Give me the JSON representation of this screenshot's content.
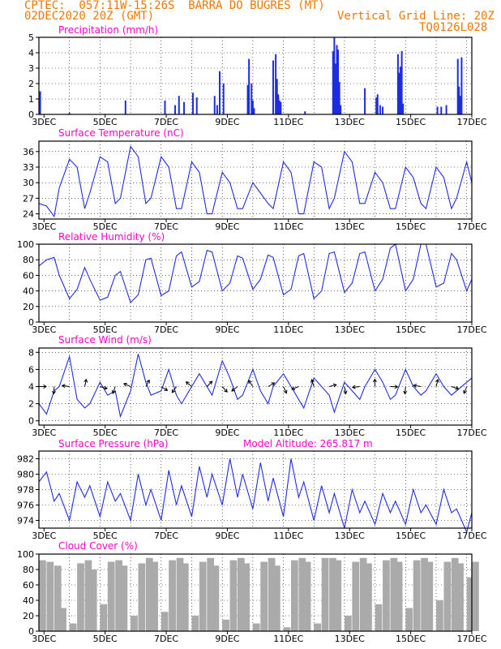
{
  "header": {
    "line1": "CPTEC:  057:11W-15:26S  BARRA DO BUGRES (MT)",
    "line2": "02DEC2020 20Z (GMT)",
    "grid_note": "Vertical Grid Line: 20Z",
    "code": "TQ0126L028",
    "model_altitude": "Model Altitude: 265.817 m"
  },
  "colors": {
    "header": "#f07800",
    "title": "#ff00cc",
    "line": "#1f2de0",
    "bar": "#1f2de0",
    "cloud": "#aaaaaa",
    "arrow": "#000000",
    "grid": "#000000"
  },
  "chart_data": [
    {
      "type": "bar",
      "title": "Precipitation (mm/h)",
      "x_tick_labels": [
        "3DEC",
        "5DEC",
        "7DEC",
        "9DEC",
        "11DEC",
        "13DEC",
        "15DEC",
        "17DEC"
      ],
      "x_start": "02DEC2020 20Z",
      "x": [
        "02DEC 21Z",
        "03DEC 20Z",
        "05DEC 16Z",
        "06DEC 23Z",
        "07DEC 07Z",
        "07DEC 10Z",
        "07DEC 14Z",
        "07DEC 21Z",
        "08DEC 00Z",
        "08DEC 14Z",
        "08DEC 16Z",
        "08DEC 18Z",
        "08DEC 21Z",
        "09DEC 16Z",
        "09DEC 17Z",
        "09DEC 19Z",
        "09DEC 20Z",
        "09DEC 21Z",
        "10DEC 12Z",
        "10DEC 14Z",
        "10DEC 15Z",
        "10DEC 16Z",
        "10DEC 17Z",
        "10DEC 18Z",
        "11DEC 13Z",
        "12DEC 11Z",
        "12DEC 12Z",
        "12DEC 13Z",
        "12DEC 14Z",
        "12DEC 15Z",
        "12DEC 16Z",
        "12DEC 17Z",
        "13DEC 12Z",
        "13DEC 21Z",
        "13DEC 22Z",
        "14DEC 00Z",
        "14DEC 02Z",
        "14DEC 14Z",
        "14DEC 15Z",
        "14DEC 16Z",
        "14DEC 17Z",
        "14DEC 18Z",
        "15DEC 21Z",
        "16DEC 00Z",
        "16DEC 04Z",
        "16DEC 13Z",
        "16DEC 14Z",
        "16DEC 15Z",
        "16DEC 16Z"
      ],
      "values": [
        1.5,
        0.1,
        0.9,
        0.9,
        0.6,
        1.2,
        0.8,
        1.4,
        1.1,
        1.2,
        0.6,
        2.8,
        2.0,
        1.9,
        3.6,
        2.0,
        0.9,
        0.4,
        3.5,
        3.9,
        2.3,
        1.3,
        0.9,
        0.8,
        0.2,
        4.1,
        5.0,
        3.3,
        4.5,
        4.2,
        2.1,
        0.6,
        1.7,
        1.1,
        1.3,
        0.6,
        0.5,
        3.9,
        2.7,
        3.1,
        4.1,
        0.7,
        0.5,
        0.5,
        0.6,
        3.6,
        1.8,
        1.2,
        3.7
      ],
      "ylim": [
        0,
        5
      ],
      "y_ticks": [
        0,
        1,
        2,
        3,
        4,
        5
      ]
    },
    {
      "type": "line",
      "title": "Surface Temperature (nC)",
      "x_tick_labels": [
        "3DEC",
        "5DEC",
        "7DEC",
        "9DEC",
        "11DEC",
        "13DEC",
        "15DEC",
        "17DEC"
      ],
      "x": [
        "02DEC 20Z",
        "03DEC 02Z",
        "03DEC 08Z",
        "03DEC 12Z",
        "03DEC 20Z",
        "04DEC 02Z",
        "04DEC 08Z",
        "04DEC 12Z",
        "04DEC 20Z",
        "05DEC 02Z",
        "05DEC 08Z",
        "05DEC 12Z",
        "05DEC 20Z",
        "06DEC 02Z",
        "06DEC 08Z",
        "06DEC 12Z",
        "06DEC 20Z",
        "07DEC 02Z",
        "07DEC 08Z",
        "07DEC 12Z",
        "07DEC 20Z",
        "08DEC 02Z",
        "08DEC 08Z",
        "08DEC 12Z",
        "08DEC 20Z",
        "09DEC 02Z",
        "09DEC 08Z",
        "09DEC 12Z",
        "09DEC 20Z",
        "10DEC 02Z",
        "10DEC 08Z",
        "10DEC 12Z",
        "10DEC 20Z",
        "11DEC 02Z",
        "11DEC 08Z",
        "11DEC 12Z",
        "11DEC 20Z",
        "12DEC 02Z",
        "12DEC 08Z",
        "12DEC 12Z",
        "12DEC 20Z",
        "13DEC 02Z",
        "13DEC 08Z",
        "13DEC 12Z",
        "13DEC 20Z",
        "14DEC 02Z",
        "14DEC 08Z",
        "14DEC 12Z",
        "14DEC 20Z",
        "15DEC 02Z",
        "15DEC 08Z",
        "15DEC 12Z",
        "15DEC 20Z",
        "16DEC 02Z",
        "16DEC 08Z",
        "16DEC 12Z",
        "16DEC 20Z",
        "17DEC 00Z"
      ],
      "values": [
        26,
        25.5,
        23.5,
        29,
        34.5,
        33,
        25,
        28,
        35,
        34,
        26,
        27,
        37,
        35,
        26,
        27,
        35,
        33,
        25,
        25,
        34,
        32,
        24,
        24,
        32,
        30,
        25,
        25,
        30,
        28,
        26,
        25,
        34,
        32,
        24,
        24,
        34,
        33,
        25,
        27,
        36,
        34,
        26,
        26,
        32,
        30,
        25,
        25,
        33,
        31,
        26,
        25,
        33,
        31,
        25,
        27,
        34,
        30
      ],
      "ylim": [
        23,
        38
      ],
      "y_ticks": [
        24,
        27,
        30,
        33,
        36
      ]
    },
    {
      "type": "line",
      "title": "Relative Humidity (%)",
      "x_tick_labels": [
        "3DEC",
        "5DEC",
        "7DEC",
        "9DEC",
        "11DEC",
        "13DEC",
        "15DEC",
        "17DEC"
      ],
      "x": [
        "02DEC 20Z",
        "03DEC 02Z",
        "03DEC 08Z",
        "03DEC 12Z",
        "03DEC 20Z",
        "04DEC 02Z",
        "04DEC 08Z",
        "04DEC 12Z",
        "04DEC 20Z",
        "05DEC 02Z",
        "05DEC 08Z",
        "05DEC 12Z",
        "05DEC 20Z",
        "06DEC 02Z",
        "06DEC 08Z",
        "06DEC 12Z",
        "06DEC 20Z",
        "07DEC 02Z",
        "07DEC 08Z",
        "07DEC 12Z",
        "07DEC 20Z",
        "08DEC 02Z",
        "08DEC 08Z",
        "08DEC 12Z",
        "08DEC 20Z",
        "09DEC 02Z",
        "09DEC 08Z",
        "09DEC 12Z",
        "09DEC 20Z",
        "10DEC 02Z",
        "10DEC 08Z",
        "10DEC 12Z",
        "10DEC 20Z",
        "11DEC 02Z",
        "11DEC 08Z",
        "11DEC 12Z",
        "11DEC 20Z",
        "12DEC 02Z",
        "12DEC 08Z",
        "12DEC 12Z",
        "12DEC 20Z",
        "13DEC 02Z",
        "13DEC 08Z",
        "13DEC 12Z",
        "13DEC 20Z",
        "14DEC 02Z",
        "14DEC 08Z",
        "14DEC 12Z",
        "14DEC 20Z",
        "15DEC 02Z",
        "15DEC 08Z",
        "15DEC 12Z",
        "15DEC 20Z",
        "16DEC 02Z",
        "16DEC 08Z",
        "16DEC 12Z",
        "16DEC 20Z",
        "17DEC 00Z"
      ],
      "values": [
        72,
        80,
        83,
        60,
        30,
        42,
        70,
        55,
        28,
        32,
        60,
        65,
        25,
        35,
        80,
        82,
        34,
        40,
        85,
        90,
        45,
        52,
        92,
        90,
        40,
        50,
        85,
        82,
        42,
        55,
        86,
        83,
        35,
        42,
        85,
        88,
        30,
        40,
        88,
        90,
        38,
        50,
        88,
        90,
        40,
        55,
        95,
        100,
        40,
        55,
        100,
        100,
        45,
        50,
        88,
        80,
        40,
        55
      ],
      "ylim": [
        0,
        100
      ],
      "y_ticks": [
        0,
        20,
        40,
        60,
        80,
        100
      ]
    },
    {
      "type": "line",
      "title": "Surface Wind (m/s)",
      "x_tick_labels": [
        "3DEC",
        "5DEC",
        "7DEC",
        "9DEC",
        "11DEC",
        "13DEC",
        "15DEC",
        "17DEC"
      ],
      "x": [
        "02DEC 20Z",
        "03DEC 02Z",
        "03DEC 08Z",
        "03DEC 12Z",
        "03DEC 20Z",
        "04DEC 02Z",
        "04DEC 08Z",
        "04DEC 12Z",
        "04DEC 20Z",
        "05DEC 02Z",
        "05DEC 08Z",
        "05DEC 12Z",
        "05DEC 20Z",
        "06DEC 02Z",
        "06DEC 08Z",
        "06DEC 12Z",
        "06DEC 20Z",
        "07DEC 02Z",
        "07DEC 08Z",
        "07DEC 12Z",
        "07DEC 20Z",
        "08DEC 02Z",
        "08DEC 08Z",
        "08DEC 12Z",
        "08DEC 20Z",
        "09DEC 02Z",
        "09DEC 08Z",
        "09DEC 12Z",
        "09DEC 20Z",
        "10DEC 02Z",
        "10DEC 08Z",
        "10DEC 12Z",
        "10DEC 20Z",
        "11DEC 02Z",
        "11DEC 08Z",
        "11DEC 12Z",
        "11DEC 20Z",
        "12DEC 02Z",
        "12DEC 08Z",
        "12DEC 12Z",
        "12DEC 20Z",
        "13DEC 02Z",
        "13DEC 08Z",
        "13DEC 12Z",
        "13DEC 20Z",
        "14DEC 02Z",
        "14DEC 08Z",
        "14DEC 12Z",
        "14DEC 20Z",
        "15DEC 02Z",
        "15DEC 08Z",
        "15DEC 12Z",
        "15DEC 20Z",
        "16DEC 02Z",
        "16DEC 08Z",
        "16DEC 12Z",
        "16DEC 20Z",
        "17DEC 00Z"
      ],
      "values": [
        2,
        0.8,
        3.5,
        4,
        7.5,
        2.5,
        1.5,
        2,
        4.5,
        3,
        3.5,
        0.5,
        3.5,
        7.8,
        4.5,
        3,
        3.5,
        6,
        3,
        2,
        4,
        5.5,
        4,
        3,
        7,
        5,
        2.5,
        3,
        6,
        3.5,
        2,
        4,
        5.5,
        4,
        2.5,
        1.5,
        5,
        4,
        3,
        1,
        4.5,
        3.5,
        2.5,
        4,
        6,
        4.5,
        2.5,
        3,
        6,
        4,
        3,
        3.5,
        5.5,
        4,
        3,
        3.5,
        4.5,
        5
      ],
      "ylim": [
        -0.5,
        8.5
      ],
      "y_ticks": [
        0,
        2,
        4,
        6,
        8
      ]
    },
    {
      "type": "line",
      "title": "Surface Pressure (hPa)",
      "x_tick_labels": [
        "3DEC",
        "5DEC",
        "7DEC",
        "9DEC",
        "11DEC",
        "13DEC",
        "15DEC",
        "17DEC"
      ],
      "x": [
        "02DEC 20Z",
        "03DEC 02Z",
        "03DEC 08Z",
        "03DEC 12Z",
        "03DEC 20Z",
        "04DEC 02Z",
        "04DEC 08Z",
        "04DEC 12Z",
        "04DEC 20Z",
        "05DEC 02Z",
        "05DEC 08Z",
        "05DEC 12Z",
        "05DEC 20Z",
        "06DEC 02Z",
        "06DEC 08Z",
        "06DEC 12Z",
        "06DEC 20Z",
        "07DEC 02Z",
        "07DEC 08Z",
        "07DEC 12Z",
        "07DEC 20Z",
        "08DEC 02Z",
        "08DEC 08Z",
        "08DEC 12Z",
        "08DEC 20Z",
        "09DEC 02Z",
        "09DEC 08Z",
        "09DEC 12Z",
        "09DEC 20Z",
        "10DEC 02Z",
        "10DEC 08Z",
        "10DEC 12Z",
        "10DEC 20Z",
        "11DEC 02Z",
        "11DEC 08Z",
        "11DEC 12Z",
        "11DEC 20Z",
        "12DEC 02Z",
        "12DEC 08Z",
        "12DEC 12Z",
        "12DEC 20Z",
        "13DEC 02Z",
        "13DEC 08Z",
        "13DEC 12Z",
        "13DEC 20Z",
        "14DEC 02Z",
        "14DEC 08Z",
        "14DEC 12Z",
        "14DEC 20Z",
        "15DEC 02Z",
        "15DEC 08Z",
        "15DEC 12Z",
        "15DEC 20Z",
        "16DEC 02Z",
        "16DEC 08Z",
        "16DEC 12Z",
        "16DEC 20Z",
        "17DEC 00Z"
      ],
      "values": [
        979,
        980.3,
        976.5,
        977.5,
        974,
        979,
        977,
        978.5,
        974.5,
        979,
        976.5,
        977.5,
        974,
        980,
        976,
        978,
        974,
        980.5,
        976,
        978.5,
        974.5,
        981,
        977,
        980,
        976,
        982,
        977,
        980,
        975.5,
        981.5,
        976.5,
        979.5,
        974.5,
        982,
        977,
        979,
        974,
        978.5,
        975,
        977.5,
        973,
        978,
        975,
        976.5,
        973.5,
        977.5,
        975,
        976.5,
        973.5,
        978,
        975,
        976,
        973.5,
        978,
        975,
        975.5,
        972.5,
        975
      ],
      "ylim": [
        973,
        983
      ],
      "y_ticks": [
        974,
        976,
        978,
        980,
        982
      ]
    },
    {
      "type": "bar",
      "title": "Cloud Cover (%)",
      "x_tick_labels": [
        "3DEC",
        "5DEC",
        "7DEC",
        "9DEC",
        "11DEC",
        "13DEC",
        "15DEC",
        "17DEC"
      ],
      "x": [
        "02DEC 20Z",
        "03DEC 02Z",
        "03DEC 08Z",
        "03DEC 12Z",
        "03DEC 20Z",
        "04DEC 02Z",
        "04DEC 08Z",
        "04DEC 12Z",
        "04DEC 20Z",
        "05DEC 02Z",
        "05DEC 08Z",
        "05DEC 12Z",
        "05DEC 20Z",
        "06DEC 02Z",
        "06DEC 08Z",
        "06DEC 12Z",
        "06DEC 20Z",
        "07DEC 02Z",
        "07DEC 08Z",
        "07DEC 12Z",
        "07DEC 20Z",
        "08DEC 02Z",
        "08DEC 08Z",
        "08DEC 12Z",
        "08DEC 20Z",
        "09DEC 02Z",
        "09DEC 08Z",
        "09DEC 12Z",
        "09DEC 20Z",
        "10DEC 02Z",
        "10DEC 08Z",
        "10DEC 12Z",
        "10DEC 20Z",
        "11DEC 02Z",
        "11DEC 08Z",
        "11DEC 12Z",
        "11DEC 20Z",
        "12DEC 02Z",
        "12DEC 08Z",
        "12DEC 12Z",
        "12DEC 20Z",
        "13DEC 02Z",
        "13DEC 08Z",
        "13DEC 12Z",
        "13DEC 20Z",
        "14DEC 02Z",
        "14DEC 08Z",
        "14DEC 12Z",
        "14DEC 20Z",
        "15DEC 02Z",
        "15DEC 08Z",
        "15DEC 12Z",
        "15DEC 20Z",
        "16DEC 02Z",
        "16DEC 08Z",
        "16DEC 12Z",
        "16DEC 20Z",
        "17DEC 00Z"
      ],
      "values": [
        92,
        90,
        85,
        30,
        10,
        88,
        92,
        80,
        35,
        90,
        92,
        85,
        20,
        88,
        95,
        90,
        25,
        92,
        95,
        88,
        20,
        90,
        95,
        85,
        15,
        92,
        95,
        88,
        10,
        90,
        95,
        85,
        5,
        92,
        95,
        90,
        10,
        95,
        95,
        92,
        20,
        90,
        95,
        88,
        35,
        92,
        95,
        90,
        30,
        92,
        95,
        90,
        40,
        90,
        95,
        88,
        70,
        90
      ],
      "ylim": [
        0,
        100
      ],
      "y_ticks": [
        0,
        20,
        40,
        60,
        80,
        100
      ]
    }
  ]
}
